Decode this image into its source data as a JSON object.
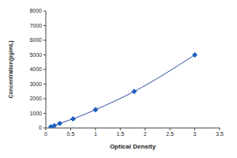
{
  "chart_data": {
    "type": "line",
    "x_label": "Optical Density",
    "y_label": "Concentration(pg/mL)",
    "x": [
      0.1,
      0.17,
      0.28,
      0.55,
      1.0,
      1.78,
      3.0
    ],
    "values": [
      78,
      156,
      312,
      625,
      1250,
      2500,
      5000
    ],
    "color": "#2f4f9f",
    "marker": "diamond",
    "xlim": [
      0,
      3.5
    ],
    "xticks": [
      0,
      0.5,
      1,
      1.5,
      2,
      2.5,
      3,
      3.5
    ],
    "ylim": [
      0,
      8000
    ],
    "yticks": [
      0,
      1000,
      2000,
      3000,
      4000,
      5000,
      6000,
      7000,
      8000
    ],
    "grid": false
  }
}
